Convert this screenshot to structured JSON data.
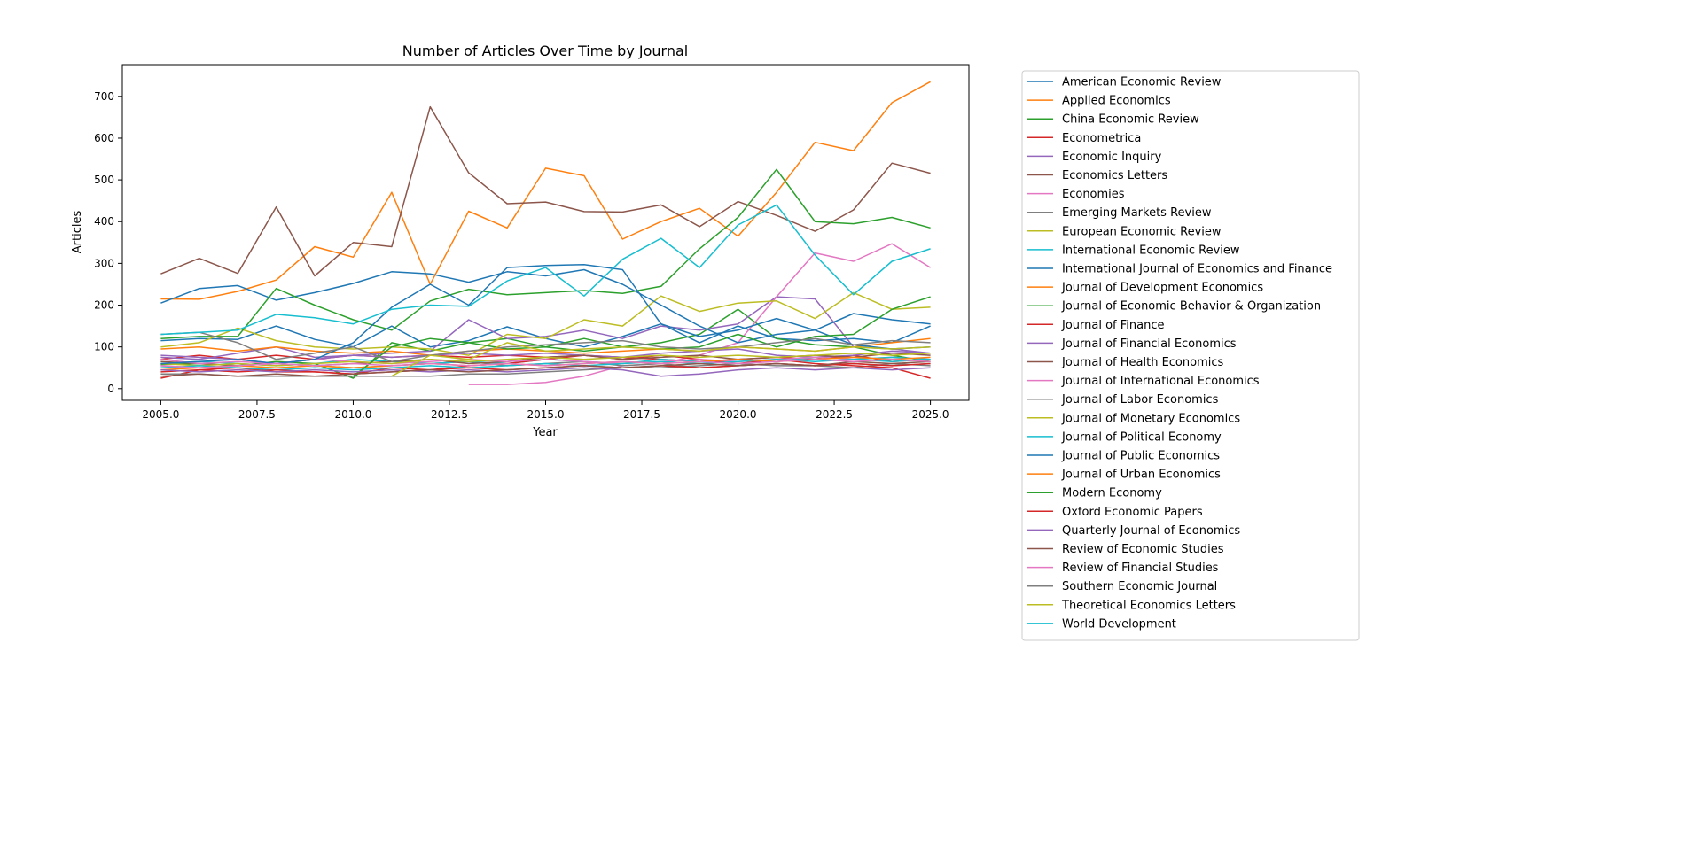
{
  "chart_data": {
    "type": "line",
    "title": "Number of Articles Over Time by Journal",
    "xlabel": "Year",
    "ylabel": "Articles",
    "xlim": [
      2004.0,
      2026.0
    ],
    "ylim": [
      -28,
      776
    ],
    "xticks": [
      "2005.0",
      "2007.5",
      "2010.0",
      "2012.5",
      "2015.0",
      "2017.5",
      "2020.0",
      "2022.5",
      "2025.0"
    ],
    "xtick_values": [
      2005,
      2007.5,
      2010,
      2012.5,
      2015,
      2017.5,
      2020,
      2022.5,
      2025
    ],
    "yticks": [
      "0",
      "100",
      "200",
      "300",
      "400",
      "500",
      "600",
      "700"
    ],
    "ytick_values": [
      0,
      100,
      200,
      300,
      400,
      500,
      600,
      700
    ],
    "grid": false,
    "legend_placement": "outside right",
    "x": [
      2005,
      2006,
      2007,
      2008,
      2009,
      2010,
      2011,
      2012,
      2013,
      2014,
      2015,
      2016,
      2017,
      2018,
      2019,
      2020,
      2021,
      2022,
      2023,
      2024,
      2025
    ],
    "series": [
      {
        "name": "American Economic Review",
        "color": "#1f77b4",
        "values": [
          115,
          120,
          118,
          150,
          118,
          100,
          150,
          100,
          115,
          148,
          120,
          100,
          125,
          155,
          110,
          150,
          120,
          115,
          120,
          110,
          150
        ]
      },
      {
        "name": "Applied Economics",
        "color": "#ff7f0e",
        "values": [
          215,
          214,
          233,
          260,
          340,
          315,
          470,
          250,
          425,
          385,
          528,
          510,
          358,
          400,
          432,
          365,
          470,
          590,
          570,
          685,
          735
        ]
      },
      {
        "name": "China Economic Review",
        "color": "#2ca02c",
        "values": [
          58,
          60,
          55,
          65,
          60,
          25,
          110,
          90,
          110,
          120,
          100,
          120,
          100,
          110,
          130,
          190,
          120,
          105,
          100,
          80,
          65
        ]
      },
      {
        "name": "Econometrica",
        "color": "#d62728",
        "values": [
          70,
          80,
          70,
          80,
          70,
          80,
          75,
          80,
          75,
          80,
          75,
          80,
          75,
          70,
          65,
          70,
          75,
          70,
          80,
          65,
          70
        ]
      },
      {
        "name": "Economic Inquiry",
        "color": "#9467bd",
        "values": [
          75,
          70,
          85,
          100,
          75,
          80,
          85,
          90,
          165,
          120,
          125,
          140,
          120,
          150,
          140,
          155,
          220,
          215,
          100,
          95,
          85
        ]
      },
      {
        "name": "Economics Letters",
        "color": "#8c564b",
        "values": [
          275,
          312,
          276,
          435,
          270,
          350,
          340,
          675,
          517,
          443,
          447,
          424,
          423,
          440,
          388,
          448,
          415,
          377,
          428,
          540,
          516
        ]
      },
      {
        "name": "Economies",
        "color": "#e377c2",
        "values": [
          null,
          null,
          null,
          null,
          null,
          null,
          null,
          null,
          10,
          10,
          15,
          30,
          55,
          60,
          80,
          110,
          220,
          325,
          305,
          347,
          290
        ]
      },
      {
        "name": "Emerging Markets Review",
        "color": "#7f7f7f",
        "values": [
          55,
          50,
          55,
          60,
          55,
          50,
          55,
          60,
          65,
          55,
          60,
          65,
          55,
          60,
          50,
          55,
          60,
          55,
          50,
          60,
          55
        ]
      },
      {
        "name": "European Economic Review",
        "color": "#bcbd22",
        "values": [
          100,
          110,
          145,
          115,
          100,
          95,
          100,
          95,
          80,
          130,
          120,
          165,
          150,
          222,
          185,
          205,
          210,
          168,
          230,
          190,
          195
        ]
      },
      {
        "name": "International Economic Review",
        "color": "#17becf",
        "values": [
          60,
          65,
          60,
          55,
          60,
          70,
          65,
          60,
          65,
          60,
          70,
          65,
          60,
          70,
          65,
          70,
          65,
          75,
          70,
          65,
          70
        ]
      },
      {
        "name": "International Journal of Economics and Finance",
        "color": "#1f77b4",
        "values": [
          205,
          240,
          247,
          212,
          230,
          252,
          280,
          275,
          255,
          280,
          270,
          285,
          250,
          200,
          150,
          110,
          130,
          140,
          180,
          165,
          155
        ]
      },
      {
        "name": "Journal of Development Economics",
        "color": "#ff7f0e",
        "values": [
          95,
          100,
          90,
          100,
          90,
          85,
          90,
          80,
          90,
          95,
          90,
          85,
          90,
          95,
          90,
          100,
          95,
          90,
          100,
          110,
          120
        ]
      },
      {
        "name": "Journal of Economic Behavior & Organization",
        "color": "#2ca02c",
        "values": [
          120,
          125,
          125,
          240,
          200,
          165,
          140,
          210,
          238,
          225,
          230,
          235,
          228,
          245,
          335,
          410,
          525,
          400,
          395,
          410,
          385
        ]
      },
      {
        "name": "Journal of Finance",
        "color": "#d62728",
        "values": [
          25,
          45,
          50,
          40,
          40,
          35,
          50,
          45,
          55,
          60,
          70,
          80,
          70,
          80,
          70,
          60,
          70,
          60,
          55,
          50,
          25
        ]
      },
      {
        "name": "Journal of Financial Economics",
        "color": "#9467bd",
        "values": [
          80,
          75,
          70,
          60,
          70,
          80,
          75,
          80,
          85,
          80,
          85,
          80,
          75,
          85,
          90,
          95,
          80,
          75,
          80,
          90,
          85
        ]
      },
      {
        "name": "Journal of Health Economics",
        "color": "#8c564b",
        "values": [
          65,
          60,
          55,
          60,
          55,
          60,
          65,
          70,
          60,
          65,
          75,
          80,
          70,
          75,
          80,
          70,
          75,
          80,
          75,
          85,
          80
        ]
      },
      {
        "name": "Journal of International Economics",
        "color": "#e377c2",
        "values": [
          70,
          60,
          65,
          60,
          70,
          65,
          60,
          65,
          70,
          65,
          70,
          65,
          60,
          65,
          70,
          65,
          70,
          75,
          70,
          75,
          70
        ]
      },
      {
        "name": "Journal of Labor Economics",
        "color": "#7f7f7f",
        "values": [
          35,
          35,
          30,
          30,
          30,
          30,
          30,
          30,
          35,
          35,
          40,
          45,
          50,
          50,
          55,
          60,
          55,
          55,
          60,
          55,
          60
        ]
      },
      {
        "name": "Journal of Monetary Economics",
        "color": "#bcbd22",
        "values": [
          60,
          55,
          60,
          55,
          60,
          65,
          60,
          70,
          65,
          70,
          75,
          70,
          75,
          80,
          75,
          80,
          75,
          80,
          85,
          80,
          85
        ]
      },
      {
        "name": "Journal of Political Economy",
        "color": "#17becf",
        "values": [
          50,
          55,
          50,
          45,
          50,
          45,
          50,
          55,
          50,
          55,
          60,
          55,
          60,
          65,
          60,
          65,
          70,
          65,
          70,
          75,
          70
        ]
      },
      {
        "name": "Journal of Public Economics",
        "color": "#1f77b4",
        "values": [
          60,
          65,
          70,
          60,
          70,
          110,
          195,
          250,
          200,
          290,
          295,
          297,
          285,
          155,
          125,
          140,
          168,
          140,
          105,
          95,
          100
        ]
      },
      {
        "name": "Journal of Urban Economics",
        "color": "#ff7f0e",
        "values": [
          45,
          50,
          55,
          50,
          55,
          50,
          55,
          60,
          55,
          60,
          55,
          60,
          65,
          60,
          65,
          70,
          65,
          70,
          75,
          70,
          75
        ]
      },
      {
        "name": "Modern Economy",
        "color": "#2ca02c",
        "values": [
          null,
          null,
          null,
          null,
          null,
          30,
          100,
          120,
          110,
          95,
          100,
          90,
          100,
          95,
          100,
          130,
          100,
          125,
          130,
          190,
          220
        ]
      },
      {
        "name": "Oxford Economic Papers",
        "color": "#d62728",
        "values": [
          40,
          45,
          40,
          45,
          40,
          35,
          40,
          45,
          50,
          45,
          50,
          55,
          50,
          55,
          50,
          55,
          60,
          55,
          60,
          55,
          60
        ]
      },
      {
        "name": "Quarterly Journal of Economics",
        "color": "#9467bd",
        "values": [
          45,
          40,
          45,
          40,
          45,
          40,
          45,
          40,
          45,
          40,
          45,
          50,
          45,
          30,
          35,
          45,
          50,
          45,
          50,
          45,
          50
        ]
      },
      {
        "name": "Review of Economic Studies",
        "color": "#8c564b",
        "values": [
          30,
          35,
          30,
          35,
          30,
          35,
          40,
          45,
          40,
          45,
          50,
          55,
          50,
          55,
          60,
          55,
          60,
          55,
          65,
          60,
          65
        ]
      },
      {
        "name": "Review of Financial Studies",
        "color": "#e377c2",
        "values": [
          55,
          50,
          55,
          60,
          55,
          60,
          55,
          60,
          55,
          60,
          55,
          60,
          65,
          60,
          65,
          60,
          65,
          70,
          65,
          70,
          65
        ]
      },
      {
        "name": "Southern Economic Journal",
        "color": "#7f7f7f",
        "values": [
          130,
          135,
          110,
          70,
          85,
          100,
          65,
          80,
          90,
          100,
          105,
          110,
          115,
          100,
          95,
          100,
          110,
          120,
          105,
          115,
          110
        ]
      },
      {
        "name": "Theoretical Economics Letters",
        "color": "#bcbd22",
        "values": [
          null,
          null,
          null,
          null,
          null,
          null,
          30,
          80,
          70,
          110,
          90,
          95,
          100,
          95,
          90,
          100,
          95,
          90,
          100,
          95,
          100
        ]
      },
      {
        "name": "World Development",
        "color": "#17becf",
        "values": [
          130,
          135,
          140,
          178,
          170,
          155,
          190,
          200,
          197,
          258,
          290,
          222,
          310,
          360,
          290,
          392,
          440,
          320,
          225,
          305,
          335
        ]
      }
    ]
  }
}
